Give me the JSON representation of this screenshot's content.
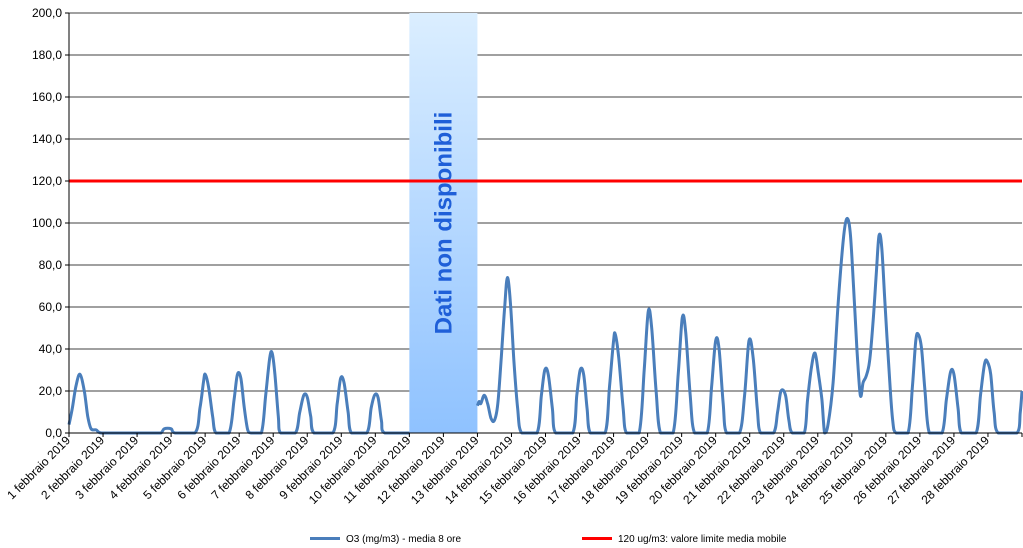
{
  "chart_data": {
    "type": "line",
    "ylim": [
      0,
      200
    ],
    "yticks": [
      "0,0",
      "20,0",
      "40,0",
      "60,0",
      "80,0",
      "100,0",
      "120,0",
      "140,0",
      "160,0",
      "180,0",
      "200,0"
    ],
    "categories": [
      "1 febbraio 2019",
      "2 febbraio 2019",
      "3 febbraio 2019",
      "4 febbraio 2019",
      "5 febbraio 2019",
      "6 febbraio 2019",
      "7 febbraio 2019",
      "8 febbraio 2019",
      "9 febbraio 2019",
      "10 febbraio 2019",
      "11 febbraio 2019",
      "12 febbraio 2019",
      "13 febbraio 2019",
      "14 febbraio 2019",
      "15 febbraio 2019",
      "16 febbraio 2019",
      "17 febbraio 2019",
      "18 febbraio 2019",
      "19 febbraio 2019",
      "20 febbraio 2019",
      "21 febbraio 2019",
      "22 febbraio 2019",
      "23 febbraio 2019",
      "24 febbraio 2019",
      "25 febbraio 2019",
      "26 febbraio 2019",
      "27 febbraio 2019",
      "28 febbraio 2019"
    ],
    "series": [
      {
        "name": "O3 (mg/m3) - media 8 ore",
        "color": "#4a7ebb",
        "points": [
          [
            0,
            4
          ],
          [
            0.1,
            12
          ],
          [
            0.2,
            22
          ],
          [
            0.32,
            28
          ],
          [
            0.45,
            20
          ],
          [
            0.55,
            8
          ],
          [
            0.65,
            2
          ],
          [
            0.8,
            1.5
          ],
          [
            0.95,
            0
          ],
          [
            1.5,
            0
          ],
          [
            2.5,
            0
          ],
          [
            2.7,
            0
          ],
          [
            2.8,
            2
          ],
          [
            3.0,
            2
          ],
          [
            3.12,
            0
          ],
          [
            3.7,
            0
          ],
          [
            3.85,
            12
          ],
          [
            3.95,
            24
          ],
          [
            4.0,
            28
          ],
          [
            4.1,
            22
          ],
          [
            4.22,
            8
          ],
          [
            4.32,
            0
          ],
          [
            4.7,
            0
          ],
          [
            4.85,
            16
          ],
          [
            4.95,
            28
          ],
          [
            5.05,
            26
          ],
          [
            5.15,
            12
          ],
          [
            5.25,
            1.5
          ],
          [
            5.35,
            0
          ],
          [
            5.65,
            0
          ],
          [
            5.78,
            18
          ],
          [
            5.9,
            36
          ],
          [
            5.97,
            38
          ],
          [
            6.05,
            28
          ],
          [
            6.15,
            8
          ],
          [
            6.22,
            0
          ],
          [
            6.65,
            0
          ],
          [
            6.78,
            10
          ],
          [
            6.9,
            18
          ],
          [
            7.0,
            17
          ],
          [
            7.1,
            8
          ],
          [
            7.2,
            0
          ],
          [
            7.75,
            0
          ],
          [
            7.88,
            14
          ],
          [
            7.98,
            26
          ],
          [
            8.08,
            24
          ],
          [
            8.2,
            10
          ],
          [
            8.3,
            0
          ],
          [
            8.75,
            0
          ],
          [
            8.88,
            12
          ],
          [
            8.98,
            18
          ],
          [
            9.08,
            17
          ],
          [
            9.18,
            6
          ],
          [
            9.28,
            0
          ],
          [
            10.0,
            0
          ]
        ],
        "points_after": [
          [
            12.0,
            13
          ],
          [
            12.05,
            15
          ],
          [
            12.1,
            14
          ],
          [
            12.2,
            18
          ],
          [
            12.3,
            14
          ],
          [
            12.4,
            7
          ],
          [
            12.5,
            6
          ],
          [
            12.6,
            14
          ],
          [
            12.7,
            36
          ],
          [
            12.8,
            60
          ],
          [
            12.88,
            74
          ],
          [
            12.97,
            62
          ],
          [
            13.07,
            35
          ],
          [
            13.18,
            12
          ],
          [
            13.3,
            0
          ],
          [
            13.75,
            0
          ],
          [
            13.88,
            18
          ],
          [
            13.98,
            30
          ],
          [
            14.08,
            28
          ],
          [
            14.2,
            12
          ],
          [
            14.3,
            0
          ],
          [
            14.8,
            0
          ],
          [
            14.92,
            18
          ],
          [
            15.02,
            30
          ],
          [
            15.12,
            28
          ],
          [
            15.22,
            12
          ],
          [
            15.32,
            0
          ],
          [
            15.75,
            0
          ],
          [
            15.88,
            22
          ],
          [
            16.0,
            44
          ],
          [
            16.05,
            47
          ],
          [
            16.15,
            36
          ],
          [
            16.28,
            12
          ],
          [
            16.38,
            0
          ],
          [
            16.75,
            0
          ],
          [
            16.9,
            30
          ],
          [
            17.02,
            58
          ],
          [
            17.12,
            50
          ],
          [
            17.25,
            20
          ],
          [
            17.38,
            0
          ],
          [
            17.75,
            0
          ],
          [
            17.9,
            28
          ],
          [
            18.02,
            55
          ],
          [
            18.12,
            48
          ],
          [
            18.25,
            18
          ],
          [
            18.38,
            0
          ],
          [
            18.75,
            0
          ],
          [
            18.88,
            22
          ],
          [
            19.0,
            44
          ],
          [
            19.1,
            40
          ],
          [
            19.22,
            14
          ],
          [
            19.32,
            0
          ],
          [
            19.7,
            0
          ],
          [
            19.85,
            18
          ],
          [
            19.98,
            44
          ],
          [
            20.1,
            36
          ],
          [
            20.22,
            12
          ],
          [
            20.32,
            0
          ],
          [
            20.7,
            0
          ],
          [
            20.82,
            10
          ],
          [
            20.92,
            20
          ],
          [
            21.05,
            18
          ],
          [
            21.15,
            6
          ],
          [
            21.25,
            0
          ],
          [
            21.6,
            0
          ],
          [
            21.7,
            16
          ],
          [
            21.82,
            32
          ],
          [
            21.92,
            38
          ],
          [
            22.02,
            28
          ],
          [
            22.12,
            16
          ],
          [
            22.2,
            0
          ],
          [
            22.3,
            4
          ],
          [
            22.45,
            24
          ],
          [
            22.6,
            62
          ],
          [
            22.75,
            92
          ],
          [
            22.85,
            102
          ],
          [
            22.95,
            96
          ],
          [
            23.05,
            70
          ],
          [
            23.15,
            40
          ],
          [
            23.25,
            18
          ],
          [
            23.33,
            24
          ],
          [
            23.42,
            27
          ],
          [
            23.52,
            34
          ],
          [
            23.62,
            52
          ],
          [
            23.72,
            76
          ],
          [
            23.8,
            94
          ],
          [
            23.88,
            88
          ],
          [
            23.98,
            60
          ],
          [
            24.1,
            28
          ],
          [
            24.2,
            6
          ],
          [
            24.3,
            0
          ],
          [
            24.65,
            0
          ],
          [
            24.78,
            22
          ],
          [
            24.88,
            44
          ],
          [
            24.95,
            47
          ],
          [
            25.05,
            40
          ],
          [
            25.15,
            20
          ],
          [
            25.28,
            0
          ],
          [
            25.65,
            0
          ],
          [
            25.78,
            16
          ],
          [
            25.9,
            29
          ],
          [
            26.0,
            28
          ],
          [
            26.12,
            12
          ],
          [
            26.22,
            0
          ],
          [
            26.65,
            0
          ],
          [
            26.78,
            18
          ],
          [
            26.9,
            33
          ],
          [
            26.98,
            34
          ],
          [
            27.08,
            28
          ],
          [
            27.18,
            10
          ],
          [
            27.3,
            0
          ],
          [
            27.85,
            0
          ],
          [
            27.95,
            10
          ],
          [
            28.0,
            20
          ]
        ]
      },
      {
        "name": "120 ug/m3: valore limite media mobile",
        "color": "#ff0000",
        "value": 120
      }
    ],
    "annotation": {
      "text": "Dati non disponibili",
      "x_start": 10,
      "x_end": 12,
      "fill_top": "#dbeeff",
      "fill_bottom": "#8fc2ff",
      "text_color": "#1f5fd8"
    }
  }
}
